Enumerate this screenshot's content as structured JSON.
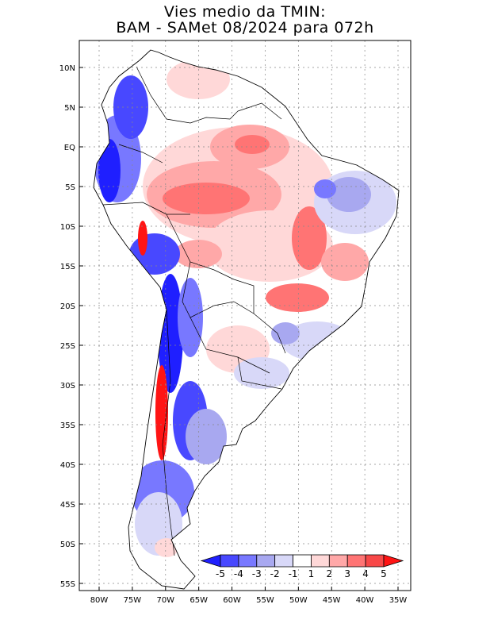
{
  "title_line1": "Vies medio da TMIN:",
  "title_line2": "BAM - SAMet 08/2024  para 072h",
  "map": {
    "lat_labels": [
      "10N",
      "5N",
      "EQ",
      "5S",
      "10S",
      "15S",
      "20S",
      "25S",
      "30S",
      "35S",
      "40S",
      "45S",
      "50S",
      "55S"
    ],
    "lon_labels": [
      "80W",
      "75W",
      "70W",
      "65W",
      "60W",
      "55W",
      "50W",
      "45W",
      "40W",
      "35W"
    ],
    "lat_values": [
      10,
      5,
      0,
      -5,
      -10,
      -15,
      -20,
      -25,
      -30,
      -35,
      -40,
      -45,
      -50,
      -55
    ],
    "lon_values": [
      -80,
      -75,
      -70,
      -65,
      -60,
      -55,
      -50,
      -45,
      -40,
      -35
    ]
  },
  "colorbar": {
    "labels": [
      "-5",
      "-4",
      "-3",
      "-2",
      "-1",
      "1",
      "2",
      "3",
      "4",
      "5"
    ],
    "colors": [
      "#1f1fff",
      "#4848ff",
      "#7878ff",
      "#a8a8f0",
      "#d8d8f8",
      "#ffffff",
      "#ffd8d8",
      "#ffa8a8",
      "#ff7474",
      "#f84848",
      "#ff1414"
    ]
  },
  "colors": {
    "neg_strong": "#1f1fff",
    "neg_mid": "#7878ff",
    "neg_light": "#d8d8f8",
    "pos_light": "#ffd8d8",
    "pos_mid": "#ff7474",
    "pos_strong": "#ff1414"
  }
}
